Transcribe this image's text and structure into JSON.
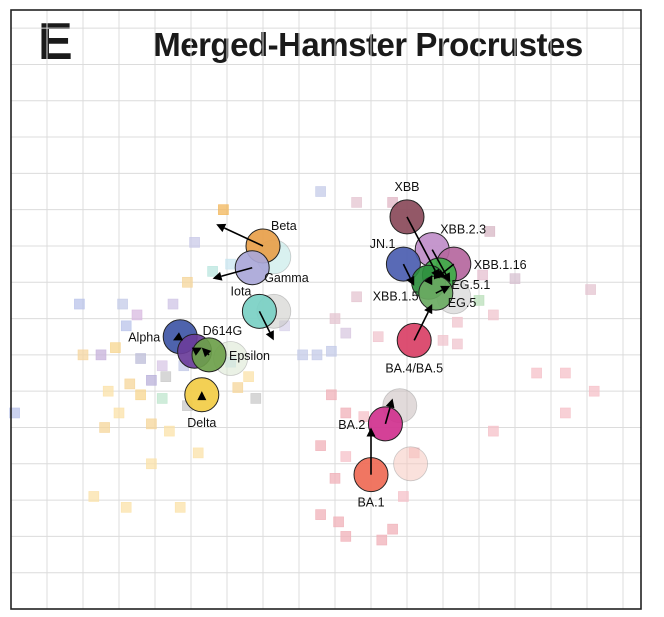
{
  "panel_label": "E",
  "chart_data": {
    "type": "scatter",
    "title": "Merged-Hamster Procrustes",
    "xlabel": "",
    "ylabel": "",
    "grid": true,
    "xlim": [
      0,
      17.5
    ],
    "ylim": [
      0,
      16.5
    ],
    "legend": "none",
    "antigens": [
      {
        "name": "Beta",
        "x": 7.0,
        "y": 10.0,
        "to": [
          5.7,
          10.6
        ],
        "color": "#e8a04a",
        "label_side": "upper-right"
      },
      {
        "name": "Gamma",
        "x": 6.7,
        "y": 9.4,
        "to": [
          5.6,
          9.1
        ],
        "color": "#a9a7d8",
        "label_side": "lower-right"
      },
      {
        "name": "Iota",
        "x": 6.9,
        "y": 8.2,
        "to": [
          7.3,
          7.4
        ],
        "color": "#79d0c4",
        "label_side": "upper-left"
      },
      {
        "name": "Alpha",
        "x": 4.7,
        "y": 7.5,
        "to": [
          4.5,
          7.4
        ],
        "color": "#3f56a6",
        "label_side": "left"
      },
      {
        "name": "D614G",
        "x": 5.1,
        "y": 7.1,
        "to": [
          5.3,
          7.2
        ],
        "color": "#6a3d9a",
        "label_side": "upper-right"
      },
      {
        "name": "Epsilon",
        "x": 5.5,
        "y": 7.0,
        "to": [
          5.3,
          7.2
        ],
        "color": "#6ca04a",
        "label_side": "right"
      },
      {
        "name": "Delta",
        "x": 5.3,
        "y": 5.9,
        "to": [
          5.3,
          6.0
        ],
        "color": "#f2cc45",
        "label_side": "below"
      },
      {
        "name": "XBB",
        "x": 11.0,
        "y": 10.8,
        "to": [
          11.9,
          9.1
        ],
        "color": "#8a4a5a",
        "label_side": "above"
      },
      {
        "name": "XBB.2.3",
        "x": 11.7,
        "y": 9.9,
        "to": [
          12.2,
          9.0
        ],
        "color": "#c08ec9",
        "label_side": "upper-right"
      },
      {
        "name": "XBB.1.16",
        "x": 12.3,
        "y": 9.5,
        "to": [
          11.8,
          9.1
        ],
        "color": "#b5679e",
        "label_side": "right"
      },
      {
        "name": "JN.1",
        "x": 10.9,
        "y": 9.5,
        "to": [
          11.2,
          8.9
        ],
        "color": "#4b5db0",
        "label_side": "upper-left"
      },
      {
        "name": "EG.5.1",
        "x": 11.9,
        "y": 9.2,
        "to": [
          12.0,
          9.2
        ],
        "color": "#3fae48",
        "label_side": "lower-right"
      },
      {
        "name": "XBB.1.5",
        "x": 11.6,
        "y": 9.0,
        "to": [
          11.7,
          9.2
        ],
        "color": "#2e8f3e",
        "label_side": "lower-left"
      },
      {
        "name": "EG.5",
        "x": 11.8,
        "y": 8.7,
        "to": [
          12.2,
          8.9
        ],
        "color": "#6aaa62",
        "label_side": "lower-right"
      },
      {
        "name": "BA.4/BA.5",
        "x": 11.2,
        "y": 7.4,
        "to": [
          11.7,
          8.4
        ],
        "color": "#d94066",
        "label_side": "below"
      },
      {
        "name": "BA.2",
        "x": 10.4,
        "y": 5.1,
        "to": [
          10.6,
          5.8
        ],
        "color": "#d0318e",
        "label_side": "left"
      },
      {
        "name": "BA.1",
        "x": 10.0,
        "y": 3.7,
        "to": [
          10.0,
          5.0
        ],
        "color": "#ef6a55",
        "label_side": "below"
      }
    ],
    "sera": [
      {
        "x": 5.9,
        "y": 11.0,
        "color": "#f2b65a"
      },
      {
        "x": 5.1,
        "y": 10.1,
        "color": "#c9c9e8"
      },
      {
        "x": 4.9,
        "y": 9.0,
        "color": "#f5d59a"
      },
      {
        "x": 5.6,
        "y": 9.3,
        "color": "#b9e6df"
      },
      {
        "x": 4.5,
        "y": 8.4,
        "color": "#cfc4e6"
      },
      {
        "x": 3.1,
        "y": 8.4,
        "color": "#c4cbe8"
      },
      {
        "x": 3.5,
        "y": 8.1,
        "color": "#d8b9e0"
      },
      {
        "x": 3.2,
        "y": 7.8,
        "color": "#b9c3ea"
      },
      {
        "x": 2.9,
        "y": 7.2,
        "color": "#f7d58f"
      },
      {
        "x": 2.5,
        "y": 7.0,
        "color": "#c7b2db"
      },
      {
        "x": 2.0,
        "y": 7.0,
        "color": "#f5d6a0"
      },
      {
        "x": 1.9,
        "y": 8.4,
        "color": "#b9c3ea"
      },
      {
        "x": 3.6,
        "y": 6.9,
        "color": "#bcbcd8"
      },
      {
        "x": 4.2,
        "y": 6.7,
        "color": "#d8c7e6"
      },
      {
        "x": 4.3,
        "y": 6.4,
        "color": "#c9c9c9"
      },
      {
        "x": 3.9,
        "y": 6.3,
        "color": "#b9b0da"
      },
      {
        "x": 4.8,
        "y": 6.7,
        "color": "#c4cbe8"
      },
      {
        "x": 3.3,
        "y": 6.2,
        "color": "#f5d59a"
      },
      {
        "x": 2.7,
        "y": 6.0,
        "color": "#fbe2a8"
      },
      {
        "x": 3.6,
        "y": 5.9,
        "color": "#f7d58f"
      },
      {
        "x": 4.2,
        "y": 5.8,
        "color": "#bfe5cd"
      },
      {
        "x": 4.9,
        "y": 5.6,
        "color": "#c9c9c9"
      },
      {
        "x": 3.0,
        "y": 5.4,
        "color": "#fbe2a8"
      },
      {
        "x": 3.9,
        "y": 5.1,
        "color": "#f5d59a"
      },
      {
        "x": 2.6,
        "y": 5.0,
        "color": "#f5d59a"
      },
      {
        "x": 4.4,
        "y": 4.9,
        "color": "#fbe2a8"
      },
      {
        "x": 5.2,
        "y": 4.3,
        "color": "#fbe2a8"
      },
      {
        "x": 3.9,
        "y": 4.0,
        "color": "#fbe2a8"
      },
      {
        "x": 2.3,
        "y": 3.1,
        "color": "#fbe2a8"
      },
      {
        "x": 3.2,
        "y": 2.8,
        "color": "#fbe2a8"
      },
      {
        "x": 4.7,
        "y": 2.8,
        "color": "#fbe2a8"
      },
      {
        "x": 0.1,
        "y": 5.4,
        "color": "#b9c3ea"
      },
      {
        "x": 6.1,
        "y": 6.8,
        "color": "#c9e6f0"
      },
      {
        "x": 6.6,
        "y": 6.4,
        "color": "#fbe2a8"
      },
      {
        "x": 6.3,
        "y": 6.1,
        "color": "#f5d59a"
      },
      {
        "x": 6.8,
        "y": 5.8,
        "color": "#c9c9c9"
      },
      {
        "x": 7.6,
        "y": 7.8,
        "color": "#d8d3ea"
      },
      {
        "x": 8.1,
        "y": 7.0,
        "color": "#c4cbe8"
      },
      {
        "x": 8.5,
        "y": 7.0,
        "color": "#c4cbe8"
      },
      {
        "x": 6.1,
        "y": 9.5,
        "color": "#c9e6f0"
      },
      {
        "x": 8.6,
        "y": 11.5,
        "color": "#c4cbe8"
      },
      {
        "x": 9.6,
        "y": 11.2,
        "color": "#e4c4d0"
      },
      {
        "x": 10.6,
        "y": 11.2,
        "color": "#e0b6c4"
      },
      {
        "x": 13.3,
        "y": 10.4,
        "color": "#d7b7c4"
      },
      {
        "x": 13.1,
        "y": 9.2,
        "color": "#e6c0d0"
      },
      {
        "x": 14.0,
        "y": 9.1,
        "color": "#d7c0d0"
      },
      {
        "x": 16.1,
        "y": 8.8,
        "color": "#e4c4d0"
      },
      {
        "x": 13.0,
        "y": 8.5,
        "color": "#b9dfb9"
      },
      {
        "x": 13.4,
        "y": 8.1,
        "color": "#f0c4ce"
      },
      {
        "x": 12.4,
        "y": 7.9,
        "color": "#f0c4ce"
      },
      {
        "x": 12.0,
        "y": 7.4,
        "color": "#f0c4ce"
      },
      {
        "x": 12.4,
        "y": 7.3,
        "color": "#f0c4ce"
      },
      {
        "x": 9.0,
        "y": 8.0,
        "color": "#e4c4d0"
      },
      {
        "x": 9.6,
        "y": 8.6,
        "color": "#e4c4d0"
      },
      {
        "x": 9.3,
        "y": 7.6,
        "color": "#d8c8e0"
      },
      {
        "x": 8.9,
        "y": 7.1,
        "color": "#c4cbe8"
      },
      {
        "x": 10.2,
        "y": 7.5,
        "color": "#f0c4ce"
      },
      {
        "x": 14.6,
        "y": 6.5,
        "color": "#f5c0c8"
      },
      {
        "x": 15.4,
        "y": 6.5,
        "color": "#f5c0c8"
      },
      {
        "x": 16.2,
        "y": 6.0,
        "color": "#f5c0c8"
      },
      {
        "x": 15.4,
        "y": 5.4,
        "color": "#f5c0c8"
      },
      {
        "x": 13.4,
        "y": 4.9,
        "color": "#f5c0c8"
      },
      {
        "x": 8.9,
        "y": 5.9,
        "color": "#f0b0b8"
      },
      {
        "x": 9.3,
        "y": 5.4,
        "color": "#f0b0b8"
      },
      {
        "x": 9.8,
        "y": 5.3,
        "color": "#f5c0c8"
      },
      {
        "x": 8.6,
        "y": 4.5,
        "color": "#f0b0b8"
      },
      {
        "x": 9.3,
        "y": 4.2,
        "color": "#f5c0c8"
      },
      {
        "x": 9.0,
        "y": 3.6,
        "color": "#f0b0b8"
      },
      {
        "x": 8.6,
        "y": 2.6,
        "color": "#f0b0b8"
      },
      {
        "x": 9.3,
        "y": 2.0,
        "color": "#f0b0b8"
      },
      {
        "x": 10.3,
        "y": 1.9,
        "color": "#f0b0b8"
      },
      {
        "x": 10.6,
        "y": 2.2,
        "color": "#f0b0b8"
      },
      {
        "x": 10.9,
        "y": 3.1,
        "color": "#f5c0c8"
      },
      {
        "x": 11.2,
        "y": 4.3,
        "color": "#f5c0c8"
      },
      {
        "x": 9.1,
        "y": 2.4,
        "color": "#f0b0b8"
      }
    ],
    "serum_shadows": [
      {
        "x": 7.3,
        "y": 9.7,
        "color": "#b9e6e3"
      },
      {
        "x": 7.3,
        "y": 8.2,
        "color": "#c9c9c4"
      },
      {
        "x": 6.1,
        "y": 6.9,
        "color": "#d8e6cf"
      },
      {
        "x": 12.3,
        "y": 8.6,
        "color": "#c9c9c9"
      },
      {
        "x": 10.8,
        "y": 5.6,
        "color": "#c9bcbc"
      },
      {
        "x": 11.1,
        "y": 4.0,
        "color": "#f5c8c0"
      }
    ]
  }
}
